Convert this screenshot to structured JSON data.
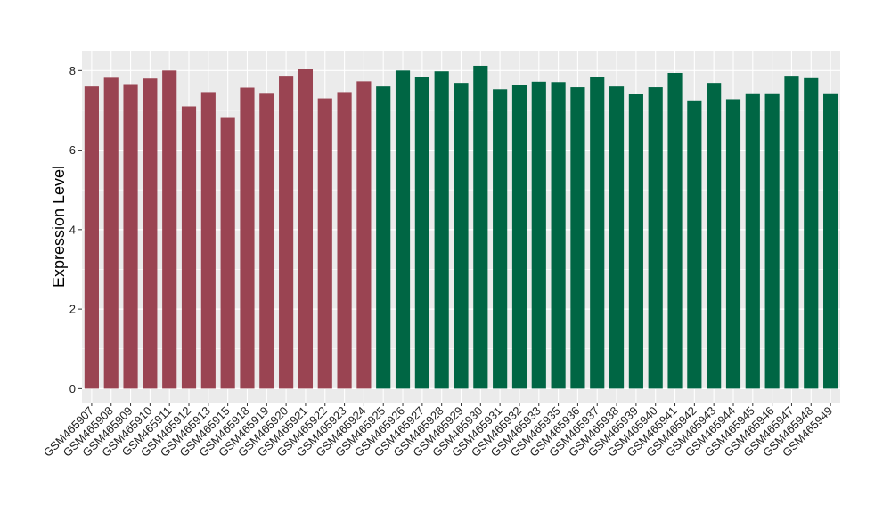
{
  "chart_data": {
    "type": "bar",
    "title": "",
    "xlabel": "",
    "ylabel": "Expression Level",
    "ylim": [
      -0.35,
      8.5
    ],
    "yticks": [
      0,
      2,
      4,
      6,
      8
    ],
    "grid": true,
    "legend": "none",
    "colors": {
      "group_a": "#9a4452",
      "group_b": "#006644",
      "panel": "#ebebeb",
      "grid": "#ffffff"
    },
    "categories": [
      "GSM465907",
      "GSM465908",
      "GSM465909",
      "GSM465910",
      "GSM465911",
      "GSM465912",
      "GSM465913",
      "GSM465915",
      "GSM465918",
      "GSM465919",
      "GSM465920",
      "GSM465921",
      "GSM465922",
      "GSM465923",
      "GSM465924",
      "GSM465925",
      "GSM465926",
      "GSM465927",
      "GSM465928",
      "GSM465929",
      "GSM465930",
      "GSM465931",
      "GSM465932",
      "GSM465933",
      "GSM465935",
      "GSM465936",
      "GSM465937",
      "GSM465938",
      "GSM465939",
      "GSM465940",
      "GSM465941",
      "GSM465942",
      "GSM465943",
      "GSM465944",
      "GSM465945",
      "GSM465946",
      "GSM465947",
      "GSM465948",
      "GSM465949"
    ],
    "values": [
      7.6,
      7.82,
      7.66,
      7.8,
      8.0,
      7.1,
      7.46,
      6.83,
      7.57,
      7.44,
      7.87,
      8.05,
      7.3,
      7.46,
      7.73,
      7.6,
      8.0,
      7.85,
      7.98,
      7.69,
      8.12,
      7.53,
      7.64,
      7.72,
      7.71,
      7.58,
      7.84,
      7.6,
      7.41,
      7.58,
      7.94,
      7.25,
      7.69,
      7.28,
      7.43,
      7.43,
      7.87,
      7.81,
      7.43
    ],
    "group": [
      "a",
      "a",
      "a",
      "a",
      "a",
      "a",
      "a",
      "a",
      "a",
      "a",
      "a",
      "a",
      "a",
      "a",
      "a",
      "b",
      "b",
      "b",
      "b",
      "b",
      "b",
      "b",
      "b",
      "b",
      "b",
      "b",
      "b",
      "b",
      "b",
      "b",
      "b",
      "b",
      "b",
      "b",
      "b",
      "b",
      "b",
      "b",
      "b"
    ]
  }
}
